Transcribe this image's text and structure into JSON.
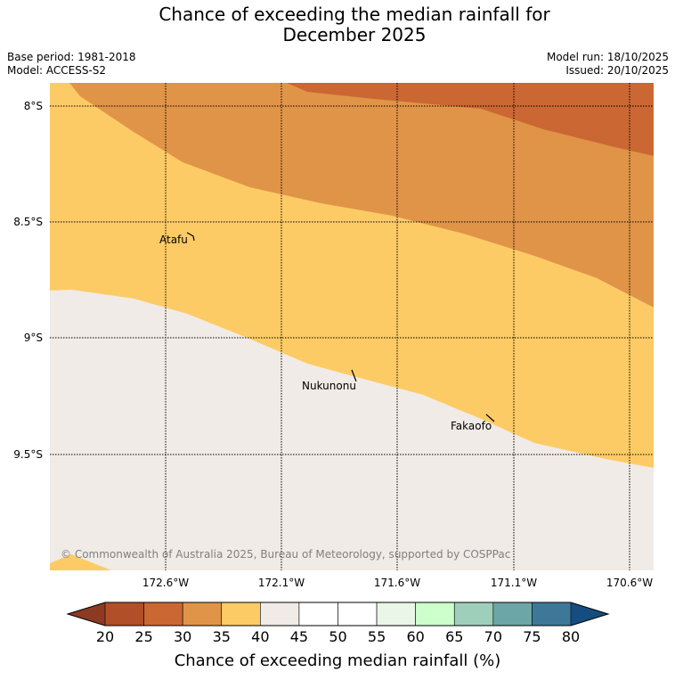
{
  "title_line1": "Chance of exceeding the median rainfall for",
  "title_line2": "December 2025",
  "base_period": "Base period: 1981-2018",
  "model": "Model: ACCESS-S2",
  "model_run": "Model run: 18/10/2025",
  "issued": "Issued: 20/10/2025",
  "lat_labels": [
    "8°S",
    "8.5°S",
    "9°S",
    "9.5°S"
  ],
  "lon_labels": [
    "172.6°W",
    "172.1°W",
    "171.6°W",
    "171.1°W",
    "170.6°W"
  ],
  "places": {
    "atafu": "Atafu",
    "nukunonu": "Nukunonu",
    "fakaofo": "Fakaofo"
  },
  "copyright": "© Commonwealth of Australia 2025, Bureau of Meteorology, supported by COSPPac",
  "colorbar": {
    "ticks": [
      "20",
      "25",
      "30",
      "35",
      "40",
      "45",
      "50",
      "55",
      "60",
      "65",
      "70",
      "75",
      "80"
    ],
    "label": "Chance of exceeding median rainfall (%)",
    "under_color": "#8c3a22",
    "over_color": "#154d80",
    "colors": [
      "#b14f28",
      "#cb6733",
      "#e09448",
      "#fdcb66",
      "#f0ebe6",
      "#ffffff",
      "#ffffff",
      "#eaf6e8",
      "#ccffcc",
      "#9ecfba",
      "#6ca6a6",
      "#3e7898"
    ]
  },
  "map_colors": {
    "band_30_35": "#cb6733",
    "band_35_40": "#e09448",
    "band_40_45": "#fdcb66",
    "band_45_50": "#f0ebe6"
  }
}
